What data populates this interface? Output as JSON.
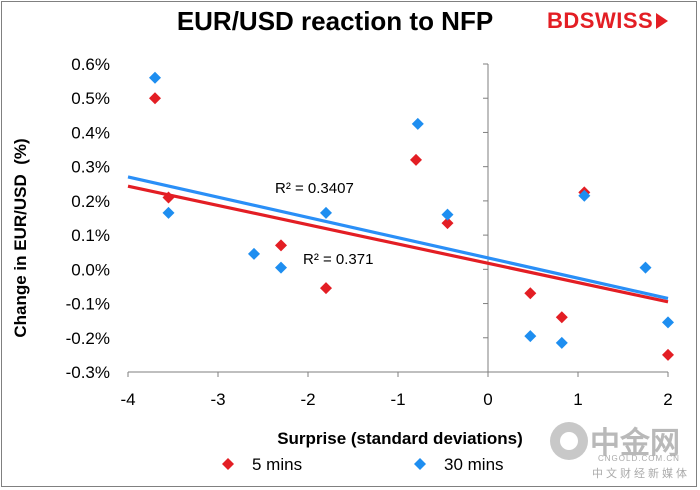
{
  "header": {
    "title": "EUR/USD reaction to NFP",
    "logo_text": "BDSWISS"
  },
  "watermark": {
    "chinese": "中金网",
    "url": "CNGOLD.COM.CN",
    "subtitle": "中文财经新媒体"
  },
  "colors": {
    "five_min": "#e31e24",
    "thirty_min": "#1e8ef0",
    "trend_red": "#e31e24",
    "trend_blue": "#2a8ff7"
  },
  "chart_data": {
    "type": "scatter",
    "title": "EUR/USD reaction to NFP",
    "xlabel": "Surprise (standard deviations)",
    "ylabel": "Change in EUR/USD  (%)",
    "xlim": [
      -4,
      2
    ],
    "ylim": [
      -0.3,
      0.6
    ],
    "x_ticks": [
      -4,
      -3,
      -2,
      -1,
      0,
      1,
      2
    ],
    "x_tick_labels": [
      "-4",
      "-3",
      "-2",
      "-1",
      "0",
      "1",
      "2"
    ],
    "y_ticks": [
      -0.3,
      -0.2,
      -0.1,
      0.0,
      0.1,
      0.2,
      0.3,
      0.4,
      0.5,
      0.6
    ],
    "y_tick_labels": [
      "-0.3%",
      "-0.2%",
      "-0.1%",
      "0.0%",
      "0.1%",
      "0.2%",
      "0.3%",
      "0.4%",
      "0.5%",
      "0.6%"
    ],
    "grid": false,
    "legend_position": "bottom",
    "series": [
      {
        "name": "5 mins",
        "marker": "diamond",
        "color": "#e31e24",
        "points": [
          [
            -3.7,
            0.5
          ],
          [
            -3.55,
            0.21
          ],
          [
            -2.3,
            0.07
          ],
          [
            -1.8,
            -0.055
          ],
          [
            -0.8,
            0.32
          ],
          [
            -0.45,
            0.135
          ],
          [
            0.47,
            -0.07
          ],
          [
            0.82,
            -0.14
          ],
          [
            1.07,
            0.225
          ],
          [
            2.0,
            -0.25
          ]
        ],
        "trendline": {
          "type": "linear",
          "from": [
            -4,
            0.243
          ],
          "to": [
            2,
            -0.095
          ],
          "r2_label": "R² = 0.371"
        }
      },
      {
        "name": "30 mins",
        "marker": "diamond",
        "color": "#1e8ef0",
        "points": [
          [
            -3.7,
            0.56
          ],
          [
            -3.55,
            0.165
          ],
          [
            -2.6,
            0.045
          ],
          [
            -2.3,
            0.005
          ],
          [
            -1.8,
            0.165
          ],
          [
            -0.78,
            0.425
          ],
          [
            -0.45,
            0.16
          ],
          [
            0.47,
            -0.195
          ],
          [
            0.82,
            -0.215
          ],
          [
            1.07,
            0.215
          ],
          [
            1.75,
            0.005
          ],
          [
            2.0,
            -0.155
          ]
        ],
        "trendline": {
          "type": "linear",
          "from": [
            -4,
            0.27
          ],
          "to": [
            2,
            -0.085
          ],
          "r2_label": "R² = 0.3407"
        }
      }
    ]
  }
}
